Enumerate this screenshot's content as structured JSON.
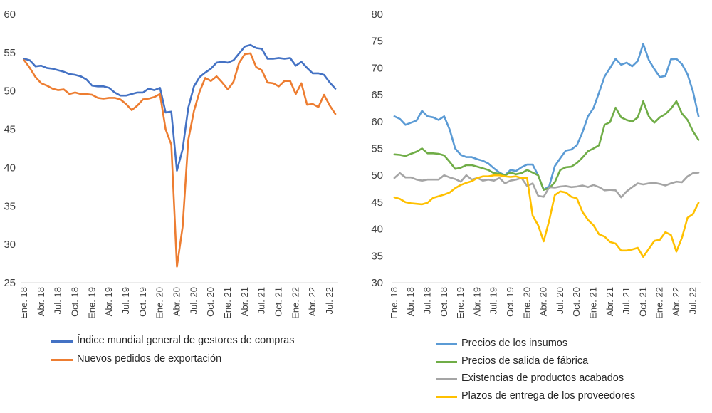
{
  "chart_data": [
    {
      "type": "line",
      "title": "",
      "xlabel": "",
      "ylabel": "",
      "ylim": [
        25,
        60
      ],
      "yticks": [
        25,
        30,
        35,
        40,
        45,
        50,
        55,
        60
      ],
      "x_tick_labels": [
        "Ene. 18",
        "Abr. 18",
        "Jul. 18",
        "Oct. 18",
        "Ene. 19",
        "Abr. 19",
        "Jul. 19",
        "Oct. 19",
        "Ene. 20",
        "Abr. 20",
        "Jul. 20",
        "Oct. 20",
        "Ene. 21",
        "Abr. 21",
        "Jul. 21",
        "Oct. 21",
        "Ene. 22",
        "Abr. 22",
        "Jul. 22"
      ],
      "x_tick_every": 3,
      "n_points": 56,
      "grid": false,
      "legend_position": "bottom",
      "series": [
        {
          "name": "Índice mundial general de gestores de compras",
          "color": "#4472c4",
          "values": [
            54.2,
            54.0,
            53.2,
            53.3,
            53.0,
            52.9,
            52.7,
            52.5,
            52.2,
            52.1,
            51.9,
            51.5,
            50.7,
            50.6,
            50.6,
            50.4,
            49.8,
            49.4,
            49.4,
            49.6,
            49.8,
            49.8,
            50.3,
            50.1,
            50.4,
            47.2,
            47.3,
            39.6,
            42.4,
            47.8,
            50.6,
            51.8,
            52.4,
            52.9,
            53.7,
            53.8,
            53.7,
            54.0,
            54.9,
            55.8,
            56.0,
            55.6,
            55.5,
            54.2,
            54.2,
            54.3,
            54.2,
            54.3,
            53.3,
            53.8,
            53.0,
            52.3,
            52.3,
            52.1,
            51.1,
            50.3
          ]
        },
        {
          "name": "Nuevos pedidos de exportación",
          "color": "#ed7d31",
          "values": [
            54.0,
            53.0,
            51.8,
            51.0,
            50.7,
            50.3,
            50.1,
            50.2,
            49.6,
            49.8,
            49.6,
            49.6,
            49.5,
            49.1,
            49.0,
            49.1,
            49.1,
            48.9,
            48.3,
            47.5,
            48.1,
            48.9,
            49.0,
            49.2,
            49.6,
            45.0,
            43.0,
            27.1,
            32.3,
            43.6,
            47.4,
            49.9,
            51.7,
            51.3,
            51.9,
            51.1,
            50.2,
            51.2,
            53.7,
            54.8,
            54.9,
            53.1,
            52.7,
            51.1,
            51.0,
            50.6,
            51.3,
            51.3,
            49.6,
            51.0,
            48.2,
            48.3,
            47.9,
            49.5,
            48.1,
            47.0
          ]
        }
      ],
      "show_legend": true
    },
    {
      "type": "line",
      "title": "",
      "xlabel": "",
      "ylabel": "",
      "ylim": [
        30,
        80
      ],
      "yticks": [
        30,
        35,
        40,
        45,
        50,
        55,
        60,
        65,
        70,
        75,
        80
      ],
      "x_tick_labels": [
        "Ene. 18",
        "Abr. 18",
        "Jul. 18",
        "Oct. 18",
        "Ene. 19",
        "Abr. 19",
        "Jul. 19",
        "Oct. 19",
        "Ene. 20",
        "Abr. 20",
        "Jul. 20",
        "Oct. 20",
        "Ene. 21",
        "Abr. 21",
        "Jul. 21",
        "Oct. 21",
        "Ene. 22",
        "Abr. 22",
        "Jul. 22"
      ],
      "x_tick_every": 3,
      "n_points": 56,
      "grid": false,
      "legend_position": "bottom",
      "series": [
        {
          "name": "Precios de los insumos",
          "color": "#5b9bd5",
          "values": [
            61.0,
            60.5,
            59.4,
            59.8,
            60.2,
            62.0,
            61.0,
            60.8,
            60.3,
            61.0,
            58.5,
            55.0,
            53.8,
            53.4,
            53.4,
            53.0,
            52.7,
            52.2,
            51.3,
            50.5,
            50.0,
            51.0,
            50.8,
            51.5,
            52.0,
            52.0,
            50.0,
            47.3,
            48.0,
            51.7,
            53.2,
            54.6,
            54.8,
            55.6,
            58.0,
            61.0,
            62.5,
            65.4,
            68.4,
            70.0,
            71.7,
            70.6,
            71.0,
            70.3,
            71.3,
            74.5,
            71.5,
            69.8,
            68.3,
            68.5,
            71.6,
            71.7,
            70.7,
            68.8,
            65.6,
            61.0
          ]
        },
        {
          "name": "Precios de salida de fábrica",
          "color": "#70ad47",
          "values": [
            53.9,
            53.8,
            53.6,
            54.0,
            54.4,
            55.0,
            54.1,
            54.1,
            54.0,
            53.7,
            52.5,
            51.2,
            51.4,
            51.9,
            51.9,
            51.6,
            51.3,
            51.0,
            50.4,
            50.3,
            50.0,
            50.5,
            50.2,
            50.4,
            51.0,
            50.5,
            50.0,
            47.3,
            47.6,
            48.7,
            51.0,
            51.5,
            51.6,
            52.3,
            53.3,
            54.5,
            55.0,
            55.6,
            59.4,
            59.9,
            62.6,
            60.8,
            60.3,
            60.0,
            60.8,
            63.8,
            61.0,
            59.8,
            60.8,
            61.4,
            62.4,
            63.8,
            61.5,
            60.3,
            58.2,
            56.6
          ]
        },
        {
          "name": "Existencias de productos acabados",
          "color": "#a5a5a5",
          "values": [
            49.5,
            50.4,
            49.6,
            49.6,
            49.2,
            49.0,
            49.2,
            49.2,
            49.2,
            50.0,
            49.6,
            49.3,
            48.8,
            50.0,
            49.2,
            49.5,
            49.0,
            49.2,
            49.0,
            49.5,
            48.5,
            49.0,
            49.2,
            49.5,
            48.0,
            48.5,
            46.2,
            46.0,
            47.8,
            47.7,
            47.9,
            48.0,
            47.8,
            47.9,
            48.1,
            47.8,
            48.2,
            47.8,
            47.2,
            47.3,
            47.2,
            45.9,
            47.0,
            47.8,
            48.5,
            48.3,
            48.5,
            48.6,
            48.4,
            48.1,
            48.5,
            48.8,
            48.7,
            49.8,
            50.4,
            50.5
          ]
        },
        {
          "name": "Plazos de entrega de los proveedores",
          "color": "#ffc000",
          "values": [
            45.9,
            45.6,
            45.0,
            44.8,
            44.7,
            44.6,
            44.9,
            45.8,
            46.1,
            46.4,
            46.8,
            47.6,
            48.2,
            48.6,
            48.9,
            49.5,
            49.8,
            49.8,
            50.0,
            50.0,
            49.8,
            49.7,
            49.8,
            49.5,
            49.5,
            42.5,
            40.7,
            37.7,
            41.6,
            46.3,
            47.0,
            46.8,
            46.0,
            45.7,
            43.2,
            41.7,
            40.7,
            39.0,
            38.6,
            37.6,
            37.3,
            36.0,
            36.0,
            36.2,
            36.5,
            34.8,
            36.3,
            37.8,
            38.0,
            39.4,
            38.9,
            35.8,
            38.4,
            42.1,
            42.8,
            44.9
          ]
        }
      ],
      "show_legend": true
    }
  ]
}
